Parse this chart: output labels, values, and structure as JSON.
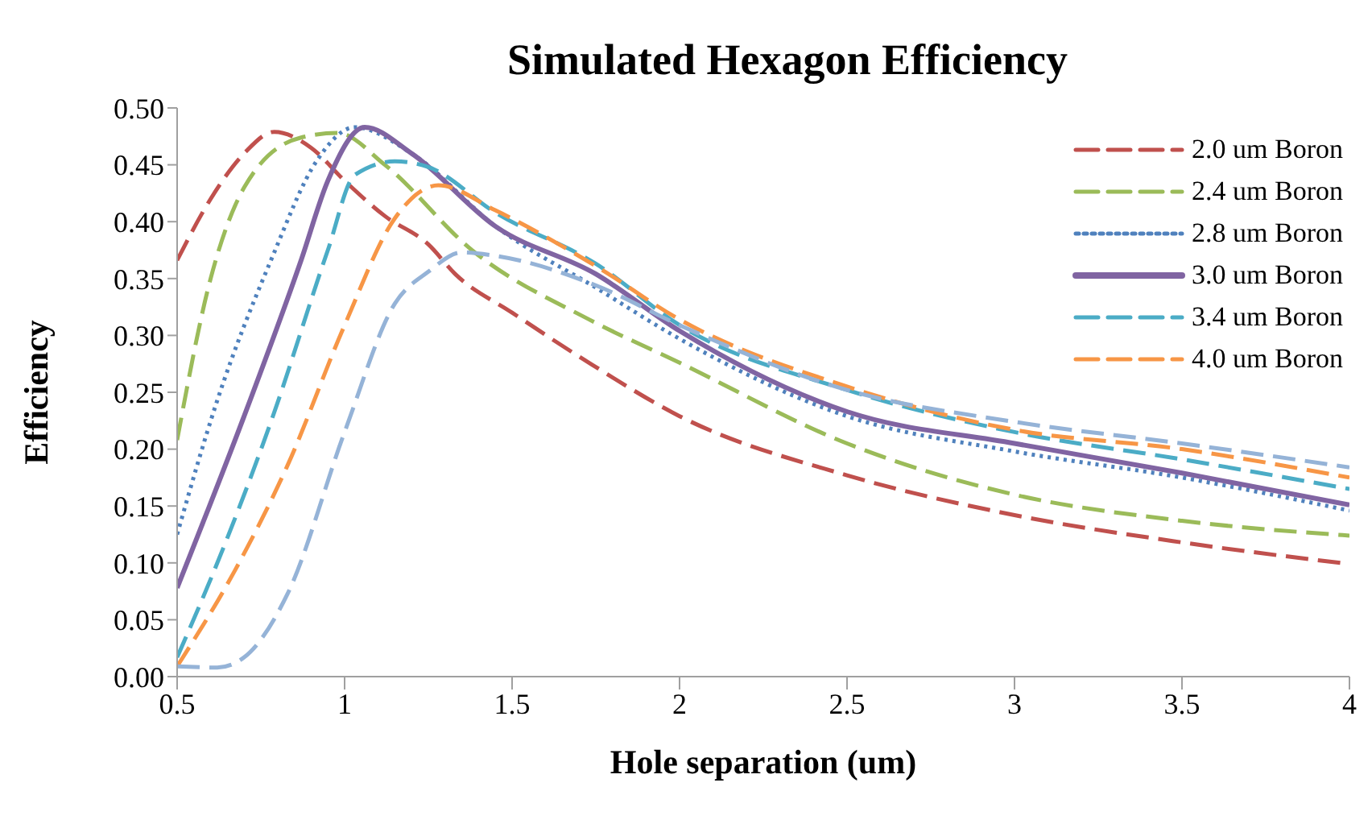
{
  "chart_data": {
    "type": "line",
    "title": "Simulated Hexagon Efficiency",
    "xlabel": "Hole separation (um)",
    "ylabel": "Efficiency",
    "xlim": [
      0.5,
      4
    ],
    "xticks": [
      0.5,
      1,
      1.5,
      2,
      2.5,
      3,
      3.5,
      4
    ],
    "ylim": [
      0,
      0.5
    ],
    "yticks": [
      {
        "value": 0,
        "label": "0.00"
      },
      {
        "value": 0.05,
        "label": "0.05"
      },
      {
        "value": 0.1,
        "label": "0.10"
      },
      {
        "value": 0.15,
        "label": "0.15"
      },
      {
        "value": 0.2,
        "label": "0.20"
      },
      {
        "value": 0.25,
        "label": "0.25"
      },
      {
        "value": 0.3,
        "label": "0.30"
      },
      {
        "value": 0.35,
        "label": "0.35"
      },
      {
        "value": 0.4,
        "label": "0.40"
      },
      {
        "value": 0.45,
        "label": "0.45"
      },
      {
        "value": 0.5,
        "label": "0.50"
      }
    ],
    "grid": false,
    "legend": "top right",
    "marker": "none",
    "series": [
      {
        "name": "2.0 um Boron",
        "color": "#c0504d",
        "line_style": "dashed",
        "x": [
          0.5,
          0.6,
          0.7,
          0.79,
          0.9,
          1.0,
          1.12,
          1.25,
          1.33,
          1.5,
          1.74,
          2,
          2.5,
          3,
          3.5,
          4
        ],
        "values": [
          0.366,
          0.42,
          0.46,
          0.479,
          0.465,
          0.436,
          0.405,
          0.38,
          0.354,
          0.32,
          0.274,
          0.229,
          0.177,
          0.142,
          0.118,
          0.099
        ]
      },
      {
        "name": "2.4 um Boron",
        "color": "#9bbb59",
        "line_style": "dashed",
        "x": [
          0.5,
          0.6,
          0.7,
          0.87,
          0.98,
          1.12,
          1.38,
          1.73,
          2,
          2.5,
          3,
          3.5,
          4
        ],
        "values": [
          0.208,
          0.35,
          0.43,
          0.474,
          0.478,
          0.45,
          0.375,
          0.314,
          0.276,
          0.205,
          0.16,
          0.137,
          0.124
        ]
      },
      {
        "name": "2.8 um Boron",
        "color": "#4f81bd",
        "line_style": "dotted",
        "x": [
          0.5,
          0.62,
          0.78,
          0.92,
          1.03,
          1.2,
          1.45,
          1.75,
          2,
          2.5,
          3,
          3.5,
          4
        ],
        "values": [
          0.125,
          0.243,
          0.366,
          0.455,
          0.483,
          0.46,
          0.396,
          0.342,
          0.297,
          0.229,
          0.198,
          0.175,
          0.146
        ]
      },
      {
        "name": "3.0 um Boron",
        "color": "#8064a2",
        "line_style": "solid",
        "x": [
          0.5,
          0.7,
          0.87,
          0.95,
          1.06,
          1.2,
          1.45,
          1.75,
          2,
          2.5,
          3,
          3.5,
          4
        ],
        "values": [
          0.078,
          0.229,
          0.366,
          0.436,
          0.483,
          0.46,
          0.396,
          0.354,
          0.304,
          0.233,
          0.205,
          0.179,
          0.151
        ]
      },
      {
        "name": "3.4 um Boron",
        "color": "#4bacc6",
        "line_style": "dashed",
        "x": [
          0.5,
          0.62,
          0.78,
          0.95,
          1.03,
          1.15,
          1.25,
          1.45,
          1.75,
          2,
          2.5,
          3,
          3.5,
          4
        ],
        "values": [
          0.017,
          0.1,
          0.224,
          0.375,
          0.441,
          0.453,
          0.448,
          0.408,
          0.363,
          0.309,
          0.252,
          0.215,
          0.191,
          0.165
        ]
      },
      {
        "name": "4.0 um Boron",
        "color": "#f79646",
        "line_style": "dashed",
        "x": [
          0.5,
          0.67,
          0.83,
          1.0,
          1.15,
          1.28,
          1.45,
          1.75,
          2,
          2.5,
          3,
          3.5,
          4
        ],
        "values": [
          0.009,
          0.092,
          0.186,
          0.309,
          0.403,
          0.432,
          0.41,
          0.361,
          0.314,
          0.255,
          0.217,
          0.2,
          0.175
        ]
      },
      {
        "color": "#95b3d7",
        "line_style": "dashed",
        "x": [
          0.5,
          0.62,
          0.7,
          0.83,
          1.0,
          1.15,
          1.25,
          1.35,
          1.45,
          1.75,
          2,
          2.5,
          3,
          3.5,
          4
        ],
        "values": [
          0.009,
          0.008,
          0.017,
          0.073,
          0.215,
          0.328,
          0.356,
          0.373,
          0.37,
          0.344,
          0.309,
          0.252,
          0.224,
          0.205,
          0.184
        ]
      }
    ]
  }
}
